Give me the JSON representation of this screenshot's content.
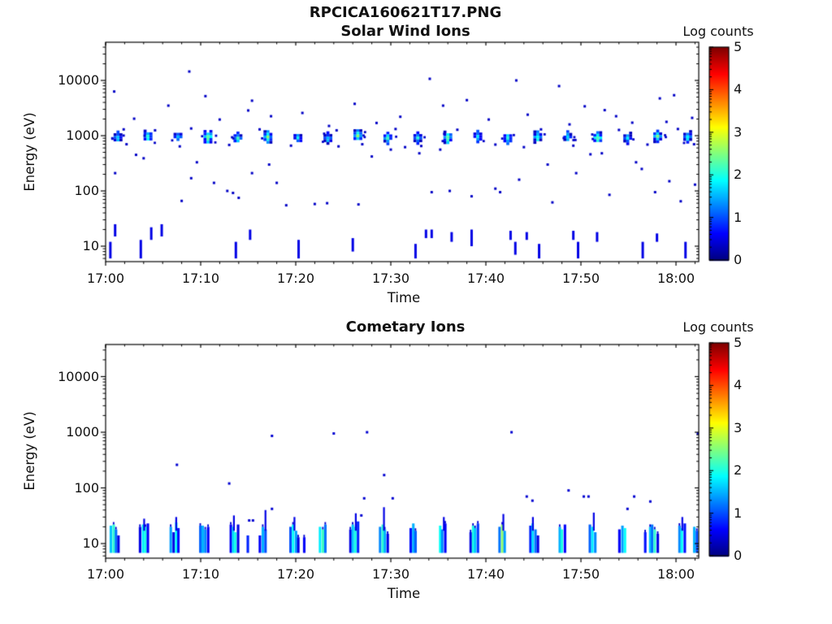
{
  "figure": {
    "title": "RPCICA160621T17.PNG"
  },
  "chart_data": [
    {
      "type": "heatmap",
      "title": "Solar Wind Ions",
      "xlabel": "Time",
      "ylabel": "Energy (eV)",
      "x_tick_labels": [
        "17:00",
        "17:10",
        "17:20",
        "17:30",
        "17:40",
        "17:50",
        "18:00"
      ],
      "x_tick_minutes": [
        0,
        10,
        20,
        30,
        40,
        50,
        60
      ],
      "x_range_minutes": [
        0,
        62.4
      ],
      "y_tick_labels": [
        "10000",
        "1000",
        "100",
        "10"
      ],
      "y_ticks_ev": [
        10000,
        1000,
        100,
        10
      ],
      "y_range_ev": [
        5.5,
        49000
      ],
      "y_scale": "log",
      "grid": false,
      "colorbar": {
        "title": "Log counts",
        "min": 0,
        "max": 5,
        "tick_labels": [
          "5",
          "4",
          "3",
          "2",
          "1",
          "0"
        ],
        "tick_values": [
          5,
          4,
          3,
          2,
          1,
          0
        ],
        "colormap": "jet"
      },
      "beam_blobs": {
        "description": "periodic solar-wind beam near 1 keV",
        "energy_ev": 950,
        "energy_band_ev": [
          700,
          1250
        ],
        "start_min": 1.3,
        "period_min": 3.154,
        "count": 20,
        "core_log_counts": [
          2.3,
          2.6,
          2.2,
          3.0,
          2.4,
          2.7,
          2.3,
          2.2,
          2.8,
          2.4,
          2.5,
          2.9,
          2.3,
          2.5,
          2.6,
          2.2,
          2.8,
          2.4,
          2.6,
          2.5
        ]
      },
      "scatter_log_counts": 0.35,
      "scatter": [
        [
          8.8,
          14500
        ],
        [
          0.9,
          6300
        ],
        [
          10.5,
          5200
        ],
        [
          6.6,
          3500
        ],
        [
          15.4,
          4300
        ],
        [
          15.0,
          2860
        ],
        [
          20.7,
          2580
        ],
        [
          3.0,
          2030
        ],
        [
          12.0,
          1960
        ],
        [
          17.4,
          2250
        ],
        [
          26.2,
          3770
        ],
        [
          34.1,
          10700
        ],
        [
          38.0,
          4400
        ],
        [
          43.2,
          10000
        ],
        [
          47.7,
          7900
        ],
        [
          50.4,
          3400
        ],
        [
          58.3,
          4730
        ],
        [
          59.8,
          5400
        ],
        [
          40.3,
          1960
        ],
        [
          44.4,
          2400
        ],
        [
          53.7,
          2250
        ],
        [
          55.4,
          1720
        ],
        [
          59.0,
          1780
        ],
        [
          61.7,
          2100
        ],
        [
          35.5,
          3500
        ],
        [
          28.5,
          1700
        ],
        [
          31.0,
          2200
        ],
        [
          23.5,
          1500
        ],
        [
          48.8,
          1600
        ],
        [
          52.5,
          2900
        ],
        [
          1.9,
          1300
        ],
        [
          2.2,
          700
        ],
        [
          5.2,
          1250
        ],
        [
          7.8,
          640
        ],
        [
          9.0,
          1350
        ],
        [
          13.0,
          680
        ],
        [
          16.2,
          1300
        ],
        [
          19.5,
          660
        ],
        [
          24.3,
          1250
        ],
        [
          27.0,
          700
        ],
        [
          30.5,
          1320
        ],
        [
          33.2,
          650
        ],
        [
          37.0,
          1280
        ],
        [
          41.0,
          690
        ],
        [
          45.8,
          1300
        ],
        [
          49.2,
          660
        ],
        [
          54.0,
          1270
        ],
        [
          57.0,
          690
        ],
        [
          60.2,
          1320
        ],
        [
          61.9,
          700
        ],
        [
          1.0,
          210
        ],
        [
          3.2,
          450
        ],
        [
          4.0,
          390
        ],
        [
          9.6,
          330
        ],
        [
          9.0,
          170
        ],
        [
          11.4,
          140
        ],
        [
          12.8,
          100
        ],
        [
          13.4,
          92
        ],
        [
          14.0,
          75
        ],
        [
          15.4,
          210
        ],
        [
          8.0,
          66
        ],
        [
          19.0,
          55
        ],
        [
          22.0,
          58
        ],
        [
          23.3,
          60
        ],
        [
          26.6,
          57
        ],
        [
          30.0,
          560
        ],
        [
          31.5,
          620
        ],
        [
          33.0,
          480
        ],
        [
          35.2,
          560
        ],
        [
          36.2,
          100
        ],
        [
          38.5,
          80
        ],
        [
          41.0,
          110
        ],
        [
          41.5,
          95
        ],
        [
          43.5,
          160
        ],
        [
          44.0,
          620
        ],
        [
          46.5,
          300
        ],
        [
          47.0,
          62
        ],
        [
          51.0,
          460
        ],
        [
          52.2,
          480
        ],
        [
          53.0,
          85
        ],
        [
          57.8,
          95
        ],
        [
          59.3,
          150
        ],
        [
          60.5,
          65
        ],
        [
          62.0,
          130
        ],
        [
          28.0,
          420
        ],
        [
          24.5,
          640
        ],
        [
          17.2,
          300
        ],
        [
          18.0,
          140
        ],
        [
          34.3,
          95
        ],
        [
          49.5,
          210
        ],
        [
          55.8,
          330
        ],
        [
          56.4,
          250
        ]
      ],
      "low_dashes_log_counts": 0.5,
      "low_dashes": [
        [
          0.5,
          6,
          12
        ],
        [
          1.0,
          15,
          25
        ],
        [
          3.7,
          6,
          13
        ],
        [
          4.8,
          13,
          22
        ],
        [
          5.9,
          15,
          25
        ],
        [
          13.7,
          6,
          12
        ],
        [
          15.2,
          13,
          20
        ],
        [
          20.3,
          6,
          13
        ],
        [
          26.0,
          8,
          14
        ],
        [
          32.6,
          6,
          11
        ],
        [
          33.7,
          14,
          20
        ],
        [
          34.3,
          14,
          20
        ],
        [
          36.4,
          12,
          18
        ],
        [
          38.5,
          10,
          20
        ],
        [
          42.6,
          13,
          19
        ],
        [
          43.1,
          7,
          12
        ],
        [
          44.3,
          13,
          18
        ],
        [
          45.6,
          6,
          11
        ],
        [
          49.2,
          13,
          19
        ],
        [
          49.7,
          6,
          12
        ],
        [
          51.7,
          12,
          18
        ],
        [
          56.5,
          6,
          12
        ],
        [
          58.0,
          12,
          17
        ],
        [
          61.0,
          6,
          12
        ]
      ]
    },
    {
      "type": "heatmap",
      "title": "Cometary Ions",
      "xlabel": "Time",
      "ylabel": "Energy (eV)",
      "x_tick_labels": [
        "17:00",
        "17:10",
        "17:20",
        "17:30",
        "17:40",
        "17:50",
        "18:00"
      ],
      "x_tick_minutes": [
        0,
        10,
        20,
        30,
        40,
        50,
        60
      ],
      "x_range_minutes": [
        0,
        62.4
      ],
      "y_tick_labels": [
        "10000",
        "1000",
        "100",
        "10"
      ],
      "y_ticks_ev": [
        10000,
        1000,
        100,
        10
      ],
      "y_range_ev": [
        5.5,
        49000
      ],
      "y_scale": "log",
      "grid": false,
      "colorbar": {
        "title": "Log counts",
        "min": 0,
        "max": 5,
        "tick_labels": [
          "5",
          "4",
          "3",
          "2",
          "1",
          "0"
        ],
        "tick_values": [
          5,
          4,
          3,
          2,
          1,
          0
        ],
        "colormap": "jet"
      },
      "blob_groups": [
        {
          "t": 0.9,
          "stripes": [
            [
              1.6,
              21
            ],
            [
              2.1,
              22
            ],
            [
              1.2,
              18
            ],
            [
              0.5,
              14
            ]
          ],
          "spike_ev": null
        },
        {
          "t": 4.0,
          "stripes": [
            [
              0.5,
              20
            ],
            [
              1.8,
              22
            ],
            [
              2.0,
              20
            ],
            [
              0.6,
              23
            ]
          ],
          "spike_ev": 28
        },
        {
          "t": 7.2,
          "stripes": [
            [
              1.4,
              20
            ],
            [
              0.5,
              16
            ],
            [
              1.9,
              24
            ],
            [
              0.7,
              19
            ]
          ],
          "spike_ev": 30
        },
        {
          "t": 10.3,
          "stripes": [
            [
              1.1,
              21
            ],
            [
              1.5,
              21
            ],
            [
              1.3,
              18
            ],
            [
              0.6,
              20
            ]
          ],
          "spike_ev": null
        },
        {
          "t": 13.5,
          "stripes": [
            [
              0.6,
              22
            ],
            [
              1.7,
              20
            ],
            [
              2.0,
              16
            ],
            [
              0.5,
              22
            ]
          ],
          "spike_ev": 32
        },
        {
          "t": 16.6,
          "stripes": [
            [
              0.6,
              14
            ],
            [
              1.5,
              20
            ],
            [
              1.0,
              18
            ]
          ],
          "spike_ev": 40
        },
        {
          "t": 19.8,
          "stripes": [
            [
              1.0,
              20
            ],
            [
              1.9,
              22
            ],
            [
              1.4,
              17
            ],
            [
              0.5,
              13
            ]
          ],
          "spike_ev": 30
        },
        {
          "t": 22.9,
          "stripes": [
            [
              1.8,
              20
            ],
            [
              2.2,
              18
            ],
            [
              1.2,
              22
            ]
          ],
          "spike_ev": null
        },
        {
          "t": 26.1,
          "stripes": [
            [
              0.5,
              18
            ],
            [
              1.6,
              22
            ],
            [
              2.0,
              20
            ],
            [
              0.8,
              25
            ]
          ],
          "spike_ev": 35
        },
        {
          "t": 29.2,
          "stripes": [
            [
              1.3,
              20
            ],
            [
              2.1,
              22
            ],
            [
              1.5,
              18
            ],
            [
              0.5,
              15
            ]
          ],
          "spike_ev": 45
        },
        {
          "t": 32.4,
          "stripes": [
            [
              0.7,
              19
            ],
            [
              1.5,
              23
            ],
            [
              1.1,
              17
            ]
          ],
          "spike_ev": null
        },
        {
          "t": 35.5,
          "stripes": [
            [
              1.9,
              21
            ],
            [
              1.3,
              18
            ],
            [
              0.6,
              23
            ]
          ],
          "spike_ev": 30
        },
        {
          "t": 38.7,
          "stripes": [
            [
              0.5,
              16
            ],
            [
              2.0,
              21
            ],
            [
              1.6,
              19
            ],
            [
              0.9,
              23
            ]
          ],
          "spike_ev": null
        },
        {
          "t": 41.8,
          "stripes": [
            [
              1.2,
              20
            ],
            [
              2.6,
              22
            ],
            [
              1.4,
              17
            ]
          ],
          "spike_ev": 34
        },
        {
          "t": 45.0,
          "stripes": [
            [
              0.8,
              21
            ],
            [
              1.7,
              23
            ],
            [
              1.2,
              18
            ],
            [
              0.5,
              14
            ]
          ],
          "spike_ev": 30
        },
        {
          "t": 48.1,
          "stripes": [
            [
              1.5,
              20
            ],
            [
              2.0,
              18
            ],
            [
              0.6,
              22
            ]
          ],
          "spike_ev": null
        },
        {
          "t": 51.3,
          "stripes": [
            [
              1.1,
              22
            ],
            [
              1.8,
              20
            ],
            [
              1.3,
              16
            ]
          ],
          "spike_ev": 36
        },
        {
          "t": 54.4,
          "stripes": [
            [
              0.6,
              18
            ],
            [
              1.4,
              21
            ],
            [
              1.9,
              19
            ]
          ],
          "spike_ev": null
        },
        {
          "t": 57.6,
          "stripes": [
            [
              1.6,
              20
            ],
            [
              1.2,
              22
            ],
            [
              2.1,
              18
            ],
            [
              0.5,
              15
            ]
          ],
          "spike_ev": null
        },
        {
          "t": 60.7,
          "stripes": [
            [
              1.3,
              21
            ],
            [
              1.9,
              19
            ],
            [
              0.7,
              23
            ]
          ],
          "spike_ev": 30
        },
        {
          "t": 62.3,
          "stripes": [
            [
              1.5,
              20
            ],
            [
              1.0,
              17
            ]
          ],
          "spike_ev": null
        },
        {
          "t": 15.3,
          "stripes": [
            [
              0.8,
              14
            ]
          ],
          "spike_ev": null
        },
        {
          "t": 21.2,
          "stripes": [
            [
              0.6,
              13
            ]
          ],
          "spike_ev": null
        },
        {
          "t": 57.1,
          "stripes": [
            [
              0.7,
              16
            ]
          ],
          "spike_ev": null
        }
      ],
      "scatter_log_counts": 0.4,
      "scatter": [
        [
          7.5,
          260
        ],
        [
          17.5,
          860
        ],
        [
          24.0,
          950
        ],
        [
          27.5,
          1000
        ],
        [
          42.7,
          1000
        ],
        [
          62.3,
          950
        ],
        [
          29.3,
          170
        ],
        [
          27.2,
          65
        ],
        [
          30.2,
          65
        ],
        [
          15.1,
          26
        ],
        [
          15.5,
          26
        ],
        [
          17.5,
          42
        ],
        [
          26.9,
          32
        ],
        [
          44.3,
          70
        ],
        [
          44.9,
          59
        ],
        [
          50.3,
          70
        ],
        [
          50.8,
          70
        ],
        [
          55.6,
          70
        ],
        [
          54.9,
          42
        ],
        [
          57.3,
          57
        ],
        [
          13.0,
          120
        ],
        [
          48.7,
          90
        ]
      ],
      "low_dashes_log_counts": 0.5,
      "low_dashes": []
    }
  ]
}
